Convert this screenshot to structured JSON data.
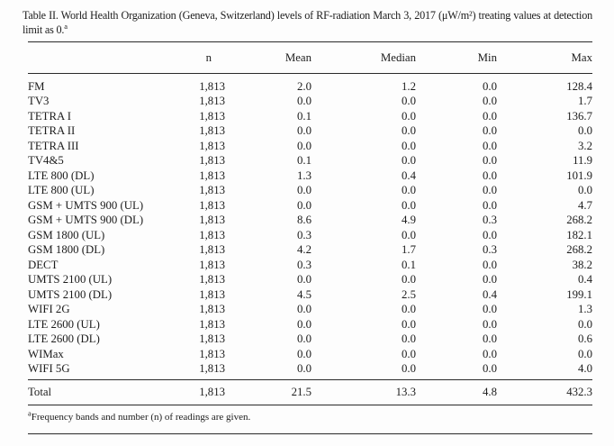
{
  "document": {
    "caption": {
      "text": "Table II. World Health Organization (Geneva, Switzerland) levels of RF-radiation March 3, 2017 (μW/m²) treating values at detection limit as 0.",
      "note_mark": "a"
    },
    "table": {
      "columns": [
        "",
        "n",
        "Mean",
        "Median",
        "Min",
        "Max"
      ],
      "rows": [
        {
          "label": "FM",
          "n": "1,813",
          "mean": "2.0",
          "median": "1.2",
          "min": "0.0",
          "max": "128.4"
        },
        {
          "label": "TV3",
          "n": "1,813",
          "mean": "0.0",
          "median": "0.0",
          "min": "0.0",
          "max": "1.7"
        },
        {
          "label": "TETRA I",
          "n": "1,813",
          "mean": "0.1",
          "median": "0.0",
          "min": "0.0",
          "max": "136.7"
        },
        {
          "label": "TETRA II",
          "n": "1,813",
          "mean": "0.0",
          "median": "0.0",
          "min": "0.0",
          "max": "0.0"
        },
        {
          "label": "TETRA III",
          "n": "1,813",
          "mean": "0.0",
          "median": "0.0",
          "min": "0.0",
          "max": "3.2"
        },
        {
          "label": "TV4&5",
          "n": "1,813",
          "mean": "0.1",
          "median": "0.0",
          "min": "0.0",
          "max": "11.9"
        },
        {
          "label": "LTE 800 (DL)",
          "n": "1,813",
          "mean": "1.3",
          "median": "0.4",
          "min": "0.0",
          "max": "101.9"
        },
        {
          "label": "LTE 800 (UL)",
          "n": "1,813",
          "mean": "0.0",
          "median": "0.0",
          "min": "0.0",
          "max": "0.0"
        },
        {
          "label": "GSM + UMTS 900 (UL)",
          "n": "1,813",
          "mean": "0.0",
          "median": "0.0",
          "min": "0.0",
          "max": "4.7"
        },
        {
          "label": "GSM + UMTS 900 (DL)",
          "n": "1,813",
          "mean": "8.6",
          "median": "4.9",
          "min": "0.3",
          "max": "268.2"
        },
        {
          "label": "GSM 1800 (UL)",
          "n": "1,813",
          "mean": "0.3",
          "median": "0.0",
          "min": "0.0",
          "max": "182.1"
        },
        {
          "label": "GSM 1800 (DL)",
          "n": "1,813",
          "mean": "4.2",
          "median": "1.7",
          "min": "0.3",
          "max": "268.2"
        },
        {
          "label": "DECT",
          "n": "1,813",
          "mean": "0.3",
          "median": "0.1",
          "min": "0.0",
          "max": "38.2"
        },
        {
          "label": "UMTS 2100 (UL)",
          "n": "1,813",
          "mean": "0.0",
          "median": "0.0",
          "min": "0.0",
          "max": "0.4"
        },
        {
          "label": "UMTS 2100 (DL)",
          "n": "1,813",
          "mean": "4.5",
          "median": "2.5",
          "min": "0.4",
          "max": "199.1"
        },
        {
          "label": "WIFI 2G",
          "n": "1,813",
          "mean": "0.0",
          "median": "0.0",
          "min": "0.0",
          "max": "1.3"
        },
        {
          "label": "LTE 2600 (UL)",
          "n": "1,813",
          "mean": "0.0",
          "median": "0.0",
          "min": "0.0",
          "max": "0.0"
        },
        {
          "label": "LTE 2600 (DL)",
          "n": "1,813",
          "mean": "0.0",
          "median": "0.0",
          "min": "0.0",
          "max": "0.6"
        },
        {
          "label": "WIMax",
          "n": "1,813",
          "mean": "0.0",
          "median": "0.0",
          "min": "0.0",
          "max": "0.0"
        },
        {
          "label": "WIFI 5G",
          "n": "1,813",
          "mean": "0.0",
          "median": "0.0",
          "min": "0.0",
          "max": "4.0"
        }
      ],
      "total": {
        "label": "Total",
        "n": "1,813",
        "mean": "21.5",
        "median": "13.3",
        "min": "4.8",
        "max": "432.3"
      }
    },
    "footnote": {
      "mark": "a",
      "text": "Frequency bands and number (n) of readings are given."
    }
  }
}
